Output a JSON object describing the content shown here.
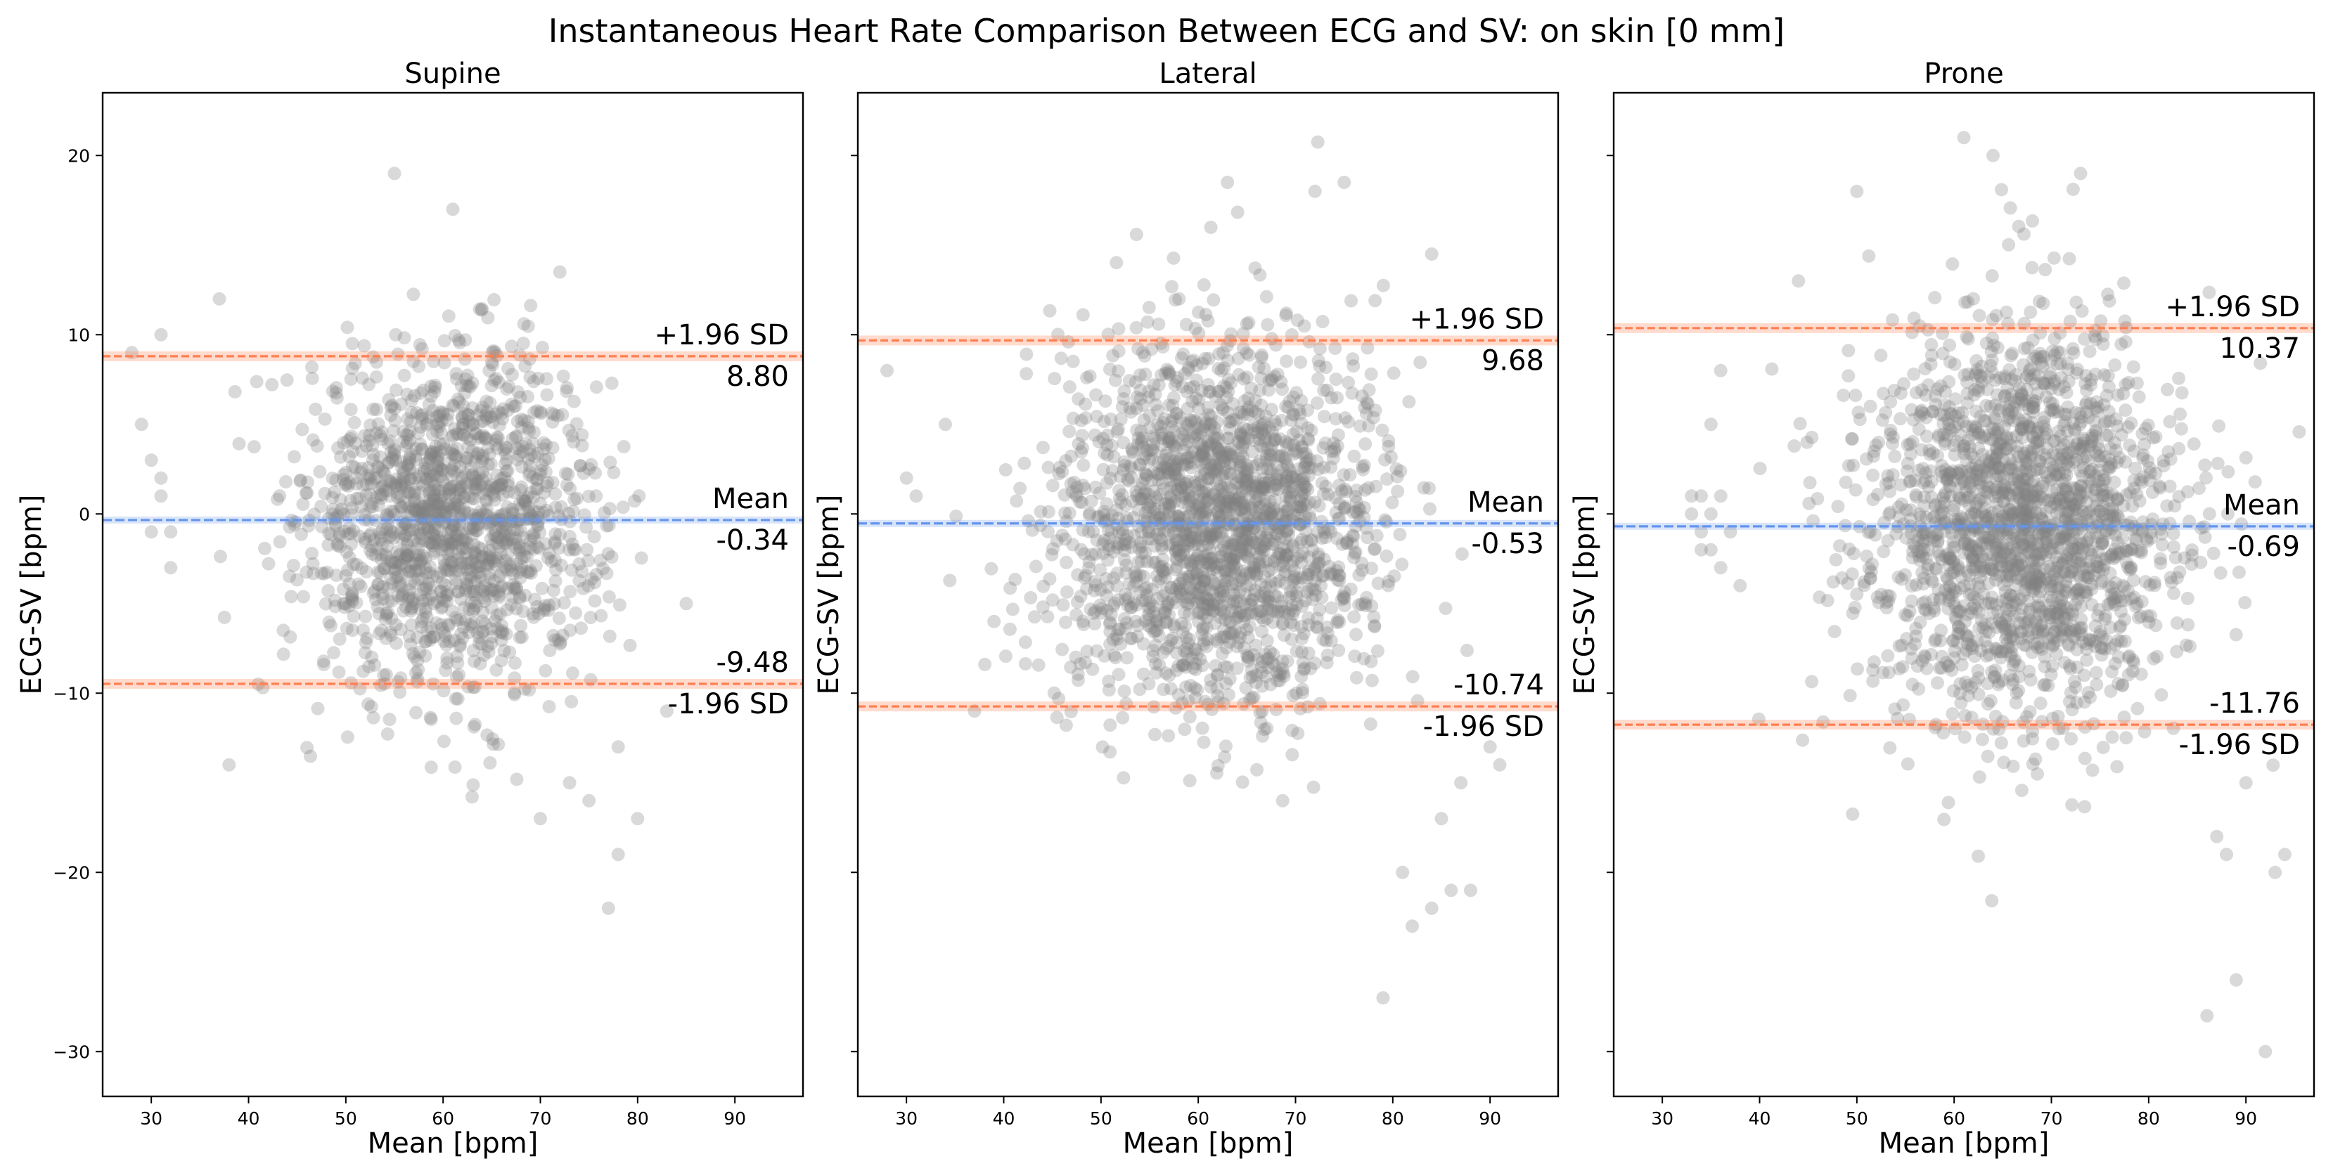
{
  "chart_data": {
    "type": "scatter",
    "title": "Instantaneous Heart Rate Comparison Between ECG and SV: on skin [0 mm]",
    "xlabel": "Mean [bpm]",
    "ylabel": "ECG-SV [bpm]",
    "xlim": [
      25,
      97
    ],
    "ylim": [
      -32.5,
      23.5
    ],
    "xticks": [
      30,
      40,
      50,
      60,
      70,
      80,
      90
    ],
    "yticks": [
      20,
      10,
      0,
      -10,
      -20,
      -30
    ],
    "xtick_labels": [
      "30",
      "40",
      "50",
      "60",
      "70",
      "80",
      "90"
    ],
    "ytick_labels": [
      "20",
      "10",
      "0",
      "−10",
      "−20",
      "−30"
    ],
    "shared_y": true,
    "point_color": "#808080",
    "mean_line_color": "#6495ED",
    "limit_line_color": "#FF7F50",
    "label_plus": "+1.96 SD",
    "label_minus": "-1.96 SD",
    "label_mean": "Mean",
    "panels": [
      {
        "title": "Supine",
        "mean": -0.34,
        "mean_label": "-0.34",
        "upper": 8.8,
        "upper_label": "8.80",
        "lower": -9.48,
        "lower_label": "-9.48",
        "x_center": 61,
        "x_spread": 7.5,
        "y_spread": 4.6,
        "n_points": 1500,
        "outliers": [
          [
            29,
            5
          ],
          [
            30,
            3
          ],
          [
            31,
            2
          ],
          [
            31,
            1
          ],
          [
            32,
            -1
          ],
          [
            32,
            -3
          ],
          [
            30,
            -1
          ],
          [
            28,
            9
          ],
          [
            31,
            10
          ],
          [
            37,
            12
          ],
          [
            38,
            -14
          ],
          [
            41,
            -9.5
          ],
          [
            55,
            19
          ],
          [
            61,
            17
          ],
          [
            72,
            13.5
          ],
          [
            77,
            -22
          ],
          [
            78,
            -19
          ],
          [
            80,
            -17
          ],
          [
            75,
            -16
          ],
          [
            70,
            -17
          ],
          [
            83,
            -11
          ],
          [
            85,
            -5
          ],
          [
            78,
            -13
          ],
          [
            73,
            -15
          ]
        ]
      },
      {
        "title": "Lateral",
        "mean": -0.53,
        "mean_label": "-0.53",
        "upper": 9.68,
        "upper_label": "9.68",
        "lower": -10.74,
        "lower_label": "-10.74",
        "x_center": 62,
        "x_spread": 8,
        "y_spread": 5.1,
        "n_points": 2000,
        "outliers": [
          [
            28,
            8
          ],
          [
            30,
            2
          ],
          [
            31,
            1
          ],
          [
            34,
            5
          ],
          [
            37,
            -11
          ],
          [
            39,
            -6
          ],
          [
            79,
            -27
          ],
          [
            81,
            -20
          ],
          [
            84,
            -22
          ],
          [
            86,
            -21
          ],
          [
            82,
            -23
          ],
          [
            88,
            -21
          ],
          [
            90,
            -13
          ],
          [
            75,
            18.5
          ],
          [
            63,
            18.5
          ],
          [
            72,
            18
          ],
          [
            84,
            14.5
          ],
          [
            87,
            -15
          ],
          [
            91,
            -14
          ],
          [
            85,
            -17
          ]
        ]
      },
      {
        "title": "Prone",
        "mean": -0.69,
        "mean_label": "-0.69",
        "upper": 10.37,
        "upper_label": "10.37",
        "lower": -11.76,
        "lower_label": "-11.76",
        "x_center": 67,
        "x_spread": 8,
        "y_spread": 5.6,
        "n_points": 2000,
        "outliers": [
          [
            33,
            1
          ],
          [
            33,
            0
          ],
          [
            34,
            1
          ],
          [
            34,
            -1
          ],
          [
            35,
            0
          ],
          [
            35,
            -2
          ],
          [
            36,
            -3
          ],
          [
            36,
            1
          ],
          [
            34,
            -2
          ],
          [
            37,
            -1
          ],
          [
            38,
            -4
          ],
          [
            35,
            5
          ],
          [
            36,
            8
          ],
          [
            61,
            21
          ],
          [
            64,
            20
          ],
          [
            73,
            19
          ],
          [
            92,
            -30
          ],
          [
            89,
            -26
          ],
          [
            86,
            -28
          ],
          [
            88,
            -19
          ],
          [
            93,
            -20
          ],
          [
            94,
            -19
          ],
          [
            90,
            -15
          ],
          [
            87,
            -18
          ],
          [
            44,
            13
          ],
          [
            50,
            18
          ]
        ]
      }
    ]
  }
}
